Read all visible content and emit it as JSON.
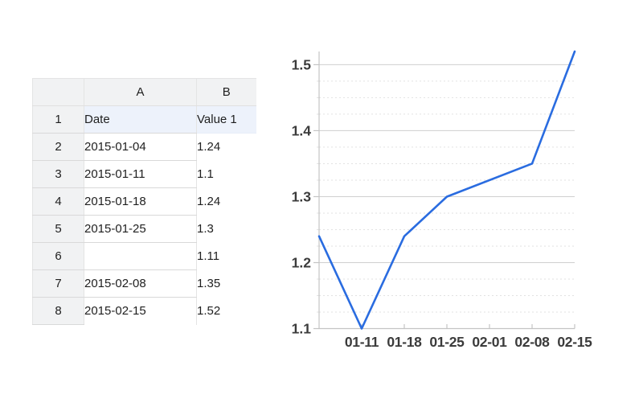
{
  "spreadsheet": {
    "corner_label": "",
    "column_headers": [
      "A",
      "B"
    ],
    "rows": [
      {
        "row_number": "1",
        "cells": [
          "Date",
          "Value 1"
        ],
        "highlighted": true
      },
      {
        "row_number": "2",
        "cells": [
          "2015-01-04",
          "1.24"
        ],
        "highlighted": false
      },
      {
        "row_number": "3",
        "cells": [
          "2015-01-11",
          "1.1"
        ],
        "highlighted": false
      },
      {
        "row_number": "4",
        "cells": [
          "2015-01-18",
          "1.24"
        ],
        "highlighted": false
      },
      {
        "row_number": "5",
        "cells": [
          "2015-01-25",
          "1.3"
        ],
        "highlighted": false
      },
      {
        "row_number": "6",
        "cells": [
          "",
          "1.11"
        ],
        "highlighted": false
      },
      {
        "row_number": "7",
        "cells": [
          "2015-02-08",
          "1.35"
        ],
        "highlighted": false
      },
      {
        "row_number": "8",
        "cells": [
          "2015-02-15",
          "1.52"
        ],
        "highlighted": false
      }
    ],
    "colors": {
      "header_bg": "#f1f2f3",
      "highlight_row_bg": "#edf2fb",
      "row_border": "#d9d9d9",
      "column_border": "#e4e4e4",
      "text": "#1f1f1f"
    }
  },
  "chart_data": {
    "type": "line",
    "title": "",
    "series": [
      {
        "name": "Value 1",
        "color": "#2a6ce0",
        "data": [
          {
            "date": "2015-01-04",
            "value": 1.24
          },
          {
            "date": "2015-01-11",
            "value": 1.1
          },
          {
            "date": "2015-01-18",
            "value": 1.24
          },
          {
            "date": "2015-01-25",
            "value": 1.3
          },
          {
            "date": "2015-02-08",
            "value": 1.35
          },
          {
            "date": "2015-02-15",
            "value": 1.52
          }
        ]
      }
    ],
    "x_axis": {
      "start_date": "2015-01-04",
      "interval_days": 7,
      "slots": 7,
      "tick_labels": [
        "01-11",
        "01-18",
        "01-25",
        "02-01",
        "02-08",
        "02-15"
      ]
    },
    "y_axis": {
      "min": 1.1,
      "max": 1.52,
      "tick_labels": [
        "1.1",
        "1.2",
        "1.3",
        "1.4",
        "1.5"
      ],
      "minor_step": 0.025
    },
    "grid": {
      "major": "solid",
      "minor": "dotted",
      "major_color": "#cfcfcf",
      "minor_color": "#e2e2e2",
      "axis_color": "#c4c4c4",
      "label_color": "#3b3b3b"
    },
    "legend": {
      "visible": false
    }
  }
}
